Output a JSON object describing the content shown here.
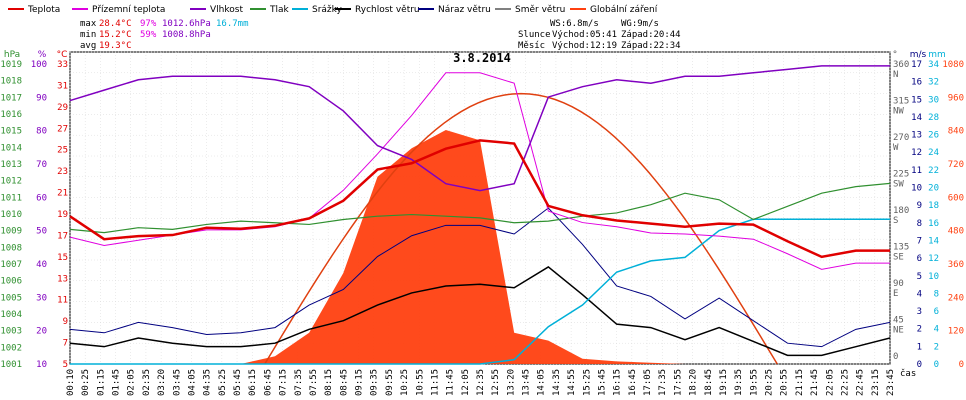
{
  "legend": [
    {
      "label": "Teplota",
      "color": "#e00000"
    },
    {
      "label": "Přízemní teplota",
      "color": "#e000e0"
    },
    {
      "label": "Vlhkost",
      "color": "#8000c0"
    },
    {
      "label": "Tlak",
      "color": "#309030"
    },
    {
      "label": "Srážky",
      "color": "#00b0d8"
    },
    {
      "label": "Rychlost větru",
      "color": "#000000"
    },
    {
      "label": "Náraz větru",
      "color": "#000080"
    },
    {
      "label": "Směr větru",
      "color": "#808080"
    },
    {
      "label": "Globální záření",
      "color": "#ff4010"
    }
  ],
  "stats": {
    "max_label": "max",
    "max_temp": "28.4°C",
    "max_hum": "97%",
    "max_press": "1012.6hPa",
    "max_rain": "16.7mm",
    "min_label": "min",
    "min_temp": "15.2°C",
    "min_hum": "59%",
    "min_press": "1008.8hPa",
    "avg_label": "avg",
    "avg_temp": "19.3°C",
    "wind": "WS:6.8m/s",
    "gust": "WG:9m/s",
    "sun_label": "Slunce",
    "sun_rise": "Východ:05:41",
    "sun_set": "Západ:20:44",
    "moon_label": "Měsíc",
    "moon_rise": "Východ:12:19",
    "moon_set": "Západ:22:34"
  },
  "date": "3.8.2014",
  "axes": {
    "hpa_unit": "hPa",
    "pct_unit": "%",
    "temp_unit": "°C",
    "hpa_ticks": [
      "1019",
      "1018",
      "1017",
      "1016",
      "1015",
      "1014",
      "1013",
      "1012",
      "1011",
      "1010",
      "1009",
      "1008",
      "1007",
      "1006",
      "1005",
      "1004",
      "1003",
      "1002",
      "1001"
    ],
    "pct_ticks": [
      "100",
      "90",
      "80",
      "70",
      "60",
      "50",
      "40",
      "30",
      "20",
      "10"
    ],
    "temp_ticks": [
      "33",
      "31",
      "29",
      "27",
      "25",
      "23",
      "21",
      "19",
      "17",
      "15",
      "13",
      "11",
      "9",
      "7",
      "5"
    ],
    "dir_unit": "°",
    "dir_ticks": [
      {
        "v": "360",
        "d": "N"
      },
      {
        "v": "315",
        "d": "NW"
      },
      {
        "v": "270",
        "d": "W"
      },
      {
        "v": "225",
        "d": "SW"
      },
      {
        "v": "180",
        "d": "S"
      },
      {
        "v": "135",
        "d": "SE"
      },
      {
        "v": "90",
        "d": "E"
      },
      {
        "v": "45",
        "d": "NE"
      },
      {
        "v": "0",
        "d": ""
      }
    ],
    "ms_unit": "m/s",
    "mm_unit": "mm",
    "wm2_unit": "W/m²",
    "ms_ticks": [
      "17",
      "16",
      "15",
      "14",
      "13",
      "12",
      "11",
      "10",
      "9",
      "8",
      "7",
      "6",
      "5",
      "4",
      "3",
      "2",
      "1",
      "0"
    ],
    "mm_ticks": [
      "34",
      "32",
      "30",
      "28",
      "26",
      "24",
      "22",
      "20",
      "18",
      "16",
      "14",
      "12",
      "10",
      "8",
      "6",
      "4",
      "2",
      "0"
    ],
    "wm2_ticks": [
      "1080",
      "960",
      "840",
      "720",
      "600",
      "480",
      "360",
      "240",
      "120",
      "0"
    ],
    "time_ticks": [
      "00:10",
      "00:25",
      "01:15",
      "01:45",
      "02:05",
      "02:35",
      "03:20",
      "03:45",
      "04:05",
      "04:35",
      "05:25",
      "05:45",
      "06:15",
      "06:45",
      "07:15",
      "07:35",
      "07:55",
      "08:15",
      "08:45",
      "09:15",
      "09:35",
      "09:55",
      "10:25",
      "10:55",
      "11:15",
      "11:45",
      "12:05",
      "12:35",
      "12:55",
      "13:20",
      "13:45",
      "14:05",
      "14:35",
      "14:55",
      "15:25",
      "15:45",
      "16:15",
      "16:45",
      "17:05",
      "17:35",
      "17:55",
      "18:20",
      "18:45",
      "19:15",
      "19:35",
      "19:55",
      "20:25",
      "20:55",
      "21:15",
      "21:45",
      "22:05",
      "22:25",
      "22:45",
      "23:15",
      "23:45"
    ],
    "time_unit": "čas"
  },
  "chart_data": {
    "type": "line",
    "x_label": "čas",
    "x": [
      0,
      1,
      2,
      3,
      4,
      5,
      6,
      7,
      8,
      9,
      10,
      11,
      12,
      13,
      14,
      15,
      16,
      17,
      18,
      19,
      20,
      21,
      22,
      23,
      24
    ],
    "series": [
      {
        "name": "Teplota",
        "unit": "°C",
        "values": [
          19.2,
          17.0,
          17.3,
          17.4,
          18.1,
          18.0,
          18.3,
          19.0,
          20.7,
          23.7,
          24.3,
          25.7,
          26.5,
          26.2,
          20.2,
          19.3,
          18.8,
          18.5,
          18.2,
          18.5,
          18.4,
          16.8,
          15.3,
          15.9,
          15.9
        ]
      },
      {
        "name": "Přízemní teplota",
        "unit": "°C",
        "values": [
          17.2,
          16.4,
          16.9,
          17.4,
          17.9,
          17.9,
          18.2,
          19.0,
          21.7,
          25.2,
          28.9,
          33.0,
          33.0,
          32.0,
          19.7,
          18.6,
          18.2,
          17.6,
          17.5,
          17.3,
          17.0,
          15.6,
          14.1,
          14.7,
          14.7
        ]
      },
      {
        "name": "Vlhkost",
        "unit": "%",
        "values": [
          86,
          89,
          92,
          93,
          93,
          93,
          92,
          90,
          83,
          73,
          69,
          62,
          60,
          62,
          87,
          90,
          92,
          91,
          93,
          93,
          94,
          95,
          96,
          96,
          96
        ]
      },
      {
        "name": "Tlak",
        "unit": "hPa",
        "values": [
          1009.2,
          1009.0,
          1009.3,
          1009.2,
          1009.5,
          1009.7,
          1009.6,
          1009.5,
          1009.8,
          1010.0,
          1010.1,
          1010.0,
          1009.9,
          1009.6,
          1009.7,
          1010.0,
          1010.2,
          1010.7,
          1011.4,
          1011.0,
          1009.8,
          1010.6,
          1011.4,
          1011.8,
          1012.0
        ]
      },
      {
        "name": "Srážky",
        "unit": "mm",
        "values": [
          0,
          0,
          0,
          0,
          0,
          0,
          0,
          0,
          0,
          0,
          0,
          0,
          0,
          0.5,
          4.3,
          6.8,
          10.6,
          11.9,
          12.3,
          15.4,
          16.7,
          16.7,
          16.7,
          16.7,
          16.7
        ]
      },
      {
        "name": "Rychlost větru",
        "unit": "m/s",
        "values": [
          1.2,
          1.0,
          1.5,
          1.2,
          1.0,
          1.0,
          1.2,
          2.0,
          2.5,
          3.4,
          4.1,
          4.5,
          4.6,
          4.4,
          5.6,
          4.0,
          2.3,
          2.1,
          1.4,
          2.1,
          1.3,
          0.5,
          0.5,
          1.0,
          1.5
        ]
      },
      {
        "name": "Náraz větru",
        "unit": "m/s",
        "values": [
          2.0,
          1.8,
          2.4,
          2.1,
          1.7,
          1.8,
          2.1,
          3.4,
          4.3,
          6.2,
          7.4,
          8.0,
          8.0,
          7.5,
          9.0,
          6.9,
          4.5,
          3.9,
          2.6,
          3.8,
          2.5,
          1.2,
          1.0,
          2.0,
          2.4
        ]
      },
      {
        "name": "Globální záření",
        "unit": "W/m²",
        "values": [
          0,
          0,
          0,
          0,
          0,
          0,
          30,
          120,
          350,
          720,
          830,
          900,
          860,
          120,
          90,
          20,
          10,
          5,
          0,
          0,
          0,
          0,
          0,
          0,
          0
        ]
      }
    ],
    "ylim_temp": [
      5,
      35
    ],
    "ylim_pct": [
      10,
      100
    ],
    "ylim_hpa": [
      1001,
      1020
    ],
    "ylim_ms": [
      0,
      18
    ],
    "ylim_mm": [
      0,
      36
    ],
    "ylim_wm2": [
      0,
      1200
    ]
  }
}
